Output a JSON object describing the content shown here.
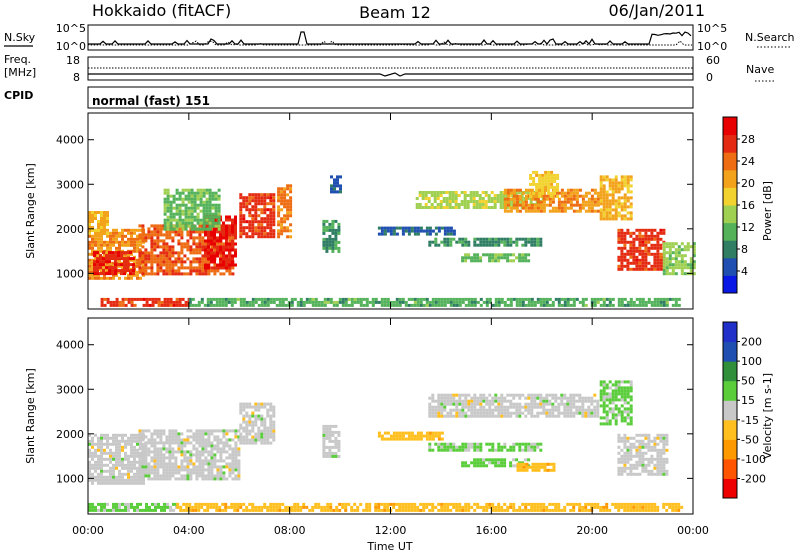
{
  "header": {
    "station": "Hokkaido (fitACF)",
    "beam": "Beam 12",
    "date": "06/Jan/2011"
  },
  "top_panels": {
    "nsky_label": "N.Sky",
    "nsky_ticks": [
      "10^5",
      "10^0"
    ],
    "nsearch_label": "N.Search",
    "nsearch_ticks": [
      "10^5",
      "10^0"
    ],
    "freq_label_1": "Freq.",
    "freq_label_2": "[MHz]",
    "freq_ticks": [
      "18",
      "8"
    ],
    "nave_label": "Nave",
    "nave_ticks": [
      "60",
      "0"
    ],
    "cpid_label": "CPID",
    "cpid_text": "normal (fast) 151"
  },
  "colors": {
    "power_scale": [
      "#0a18e6",
      "#1f4fb0",
      "#2f7d63",
      "#54b25a",
      "#9fd051",
      "#f2d22e",
      "#f3a21c",
      "#ee6c12",
      "#e42a10",
      "#e80000"
    ],
    "velocity_scale": [
      "#ef0000",
      "#ff5500",
      "#ff9900",
      "#ffbf1f",
      "#c8c8c8",
      "#5acd3a",
      "#2f8f3b",
      "#1f4fb0",
      "#2030c8"
    ]
  },
  "chart_data": [
    {
      "type": "heatmap",
      "name": "power",
      "ylabel": "Slant Range [km]",
      "yticks": [
        1000,
        2000,
        3000,
        4000
      ],
      "ylim": [
        200,
        4600
      ],
      "colorbar_label": "Power [dB]",
      "colorbar_ticks": [
        4,
        8,
        12,
        16,
        20,
        24,
        28
      ],
      "colorbar_range": [
        0,
        32
      ],
      "xlim": [
        0,
        24
      ],
      "xticks": [
        "00:00",
        "04:00",
        "08:00",
        "12:00",
        "16:00",
        "20:00",
        "00:00"
      ],
      "regions": [
        {
          "t0": 0.0,
          "t1": 2.2,
          "r0": 900,
          "r1": 2000,
          "value": 22
        },
        {
          "t0": 0.2,
          "t1": 1.8,
          "r0": 1000,
          "r1": 1500,
          "value": 28
        },
        {
          "t0": 2.0,
          "t1": 5.8,
          "r0": 1000,
          "r1": 2100,
          "value": 25
        },
        {
          "t0": 4.6,
          "t1": 5.9,
          "r0": 1100,
          "r1": 2300,
          "value": 29
        },
        {
          "t0": 6.0,
          "t1": 7.4,
          "r0": 1800,
          "r1": 2800,
          "value": 27
        },
        {
          "t0": 3.0,
          "t1": 5.2,
          "r0": 2000,
          "r1": 2900,
          "value": 12
        },
        {
          "t0": 0.0,
          "t1": 0.8,
          "r0": 1900,
          "r1": 2400,
          "value": 20
        },
        {
          "t0": 0.5,
          "t1": 4.0,
          "r0": 250,
          "r1": 450,
          "value": 27
        },
        {
          "t0": 4.0,
          "t1": 23.5,
          "r0": 250,
          "r1": 450,
          "value": 11
        },
        {
          "t0": 9.3,
          "t1": 9.9,
          "r0": 1500,
          "r1": 2200,
          "value": 9
        },
        {
          "t0": 11.5,
          "t1": 14.5,
          "r0": 1850,
          "r1": 2050,
          "value": 6
        },
        {
          "t0": 13.5,
          "t1": 18.0,
          "r0": 1600,
          "r1": 1800,
          "value": 9
        },
        {
          "t0": 14.8,
          "t1": 17.5,
          "r0": 1250,
          "r1": 1450,
          "value": 12
        },
        {
          "t0": 13.0,
          "t1": 18.0,
          "r0": 2500,
          "r1": 2850,
          "value": 15
        },
        {
          "t0": 16.5,
          "t1": 20.2,
          "r0": 2400,
          "r1": 2900,
          "value": 22
        },
        {
          "t0": 17.5,
          "t1": 18.6,
          "r0": 2700,
          "r1": 3300,
          "value": 18
        },
        {
          "t0": 20.3,
          "t1": 21.6,
          "r0": 2200,
          "r1": 3200,
          "value": 20
        },
        {
          "t0": 21.0,
          "t1": 22.8,
          "r0": 1100,
          "r1": 2000,
          "value": 27
        },
        {
          "t0": 22.8,
          "t1": 24.0,
          "r0": 1000,
          "r1": 1700,
          "value": 14
        },
        {
          "t0": 7.5,
          "t1": 8.0,
          "r0": 1800,
          "r1": 3000,
          "value": 23
        },
        {
          "t0": 9.6,
          "t1": 10.0,
          "r0": 2800,
          "r1": 3200,
          "value": 6
        }
      ]
    },
    {
      "type": "heatmap",
      "name": "velocity",
      "ylabel": "Slant Range [km]",
      "yticks": [
        1000,
        2000,
        3000,
        4000
      ],
      "ylim": [
        200,
        4600
      ],
      "colorbar_label": "Velocity [m s-1]",
      "colorbar_ticks": [
        200,
        100,
        50,
        15,
        -15,
        -50,
        -100,
        -200
      ],
      "colorbar_range": [
        -250,
        250
      ],
      "xlim": [
        0,
        24
      ],
      "xticks": [
        "00:00",
        "04:00",
        "08:00",
        "12:00",
        "16:00",
        "20:00",
        "00:00"
      ],
      "xlabel": "Time UT",
      "regions": [
        {
          "t0": 0.0,
          "t1": 2.2,
          "r0": 900,
          "r1": 2000,
          "value": 0
        },
        {
          "t0": 2.0,
          "t1": 6.0,
          "r0": 1000,
          "r1": 2100,
          "value": 0
        },
        {
          "t0": 6.0,
          "t1": 7.4,
          "r0": 1800,
          "r1": 2700,
          "value": 0
        },
        {
          "t0": 0.0,
          "t1": 3.5,
          "r0": 250,
          "r1": 450,
          "value": 45
        },
        {
          "t0": 3.5,
          "t1": 23.5,
          "r0": 250,
          "r1": 450,
          "value": -60
        },
        {
          "t0": 11.5,
          "t1": 14.0,
          "r0": 1850,
          "r1": 2050,
          "value": -60
        },
        {
          "t0": 13.5,
          "t1": 18.0,
          "r0": 1600,
          "r1": 1800,
          "value": 45
        },
        {
          "t0": 14.8,
          "t1": 17.5,
          "r0": 1250,
          "r1": 1450,
          "value": 45
        },
        {
          "t0": 13.5,
          "t1": 20.2,
          "r0": 2400,
          "r1": 2900,
          "value": 0
        },
        {
          "t0": 17.0,
          "t1": 18.5,
          "r0": 1150,
          "r1": 1350,
          "value": -60
        },
        {
          "t0": 20.3,
          "t1": 21.6,
          "r0": 2200,
          "r1": 3200,
          "value": 45
        },
        {
          "t0": 21.0,
          "t1": 23.0,
          "r0": 1100,
          "r1": 2000,
          "value": 0
        },
        {
          "t0": 9.3,
          "t1": 9.9,
          "r0": 1500,
          "r1": 2200,
          "value": 0
        }
      ]
    }
  ]
}
